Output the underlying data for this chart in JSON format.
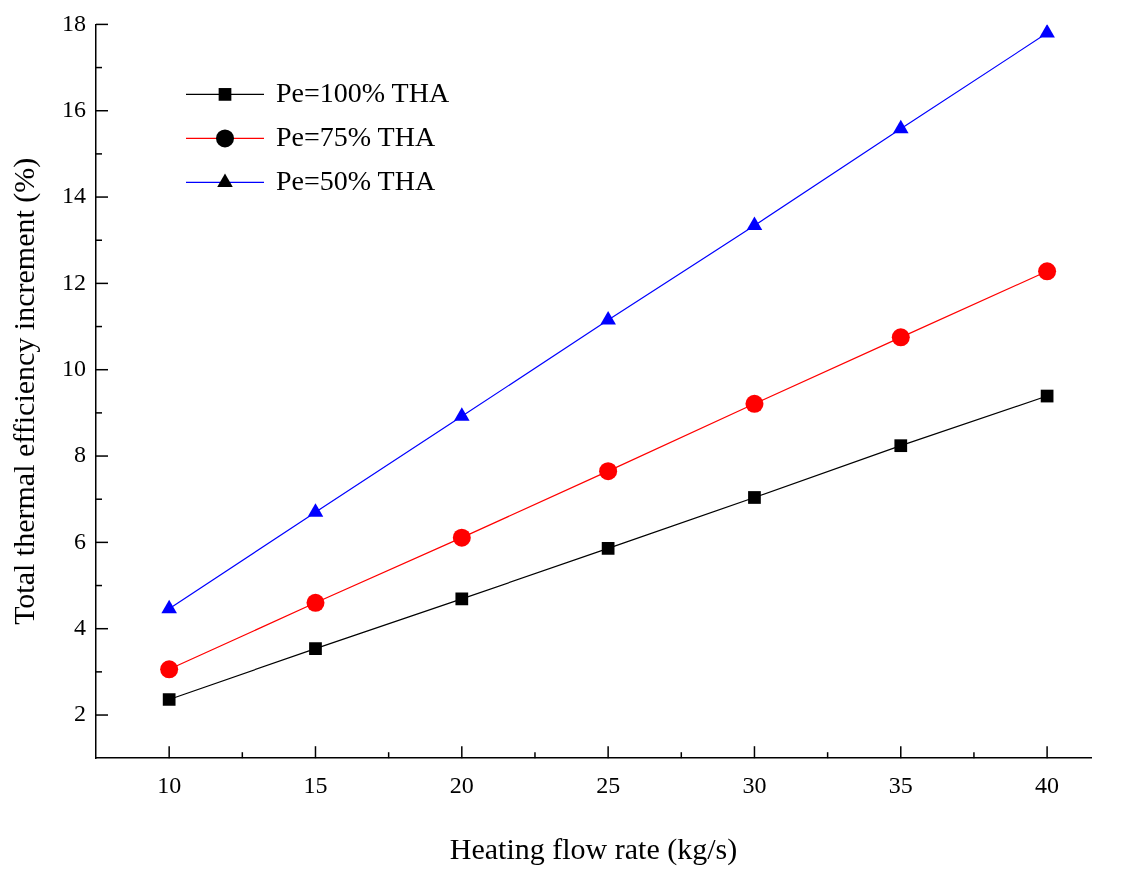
{
  "chart_data": {
    "type": "line",
    "xlabel": "Heating flow rate (kg/s)",
    "ylabel": "Total thermal efficiency increment (%)",
    "x": [
      10,
      15,
      20,
      25,
      30,
      35,
      40
    ],
    "series": [
      {
        "name": "Pe=100% THA",
        "color": "#000000",
        "marker": "square",
        "values": [
          2.36,
          3.54,
          4.69,
          5.86,
          7.04,
          8.24,
          9.39
        ]
      },
      {
        "name": "Pe=75% THA",
        "color": "#ff0000",
        "marker": "circle",
        "values": [
          3.06,
          4.6,
          6.11,
          7.65,
          9.21,
          10.75,
          12.28
        ]
      },
      {
        "name": "Pe=50% THA",
        "color": "#0000ff",
        "marker": "triangle",
        "values": [
          4.46,
          6.7,
          8.92,
          11.15,
          13.34,
          15.58,
          17.8
        ]
      }
    ],
    "xlim": [
      7.5,
      41.5
    ],
    "xticks": [
      10,
      15,
      20,
      25,
      30,
      35,
      40
    ],
    "ylim": [
      1,
      18
    ],
    "yticks": [
      2,
      4,
      6,
      8,
      10,
      12,
      14,
      16,
      18
    ],
    "grid": false,
    "legend": "top left",
    "line_style": "solid"
  }
}
